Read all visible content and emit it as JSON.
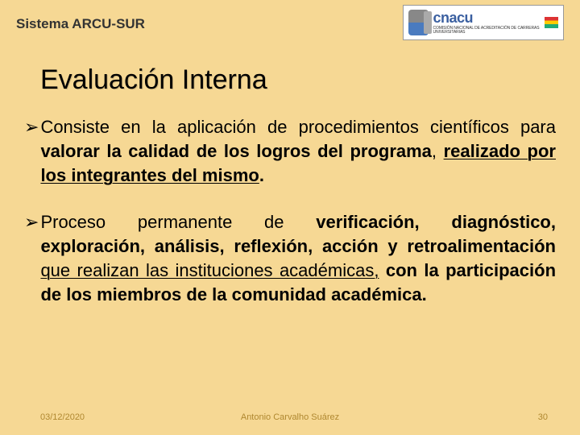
{
  "header": {
    "system_title": "Sistema ARCU-SUR",
    "logo_name": "cnacu",
    "logo_sub": "COMISIÓN NACIONAL DE ACREDITACIÓN DE CARRERAS UNIVERSITARIAS"
  },
  "title": "Evaluación Interna",
  "bullets": [
    {
      "t1": "Consiste en la aplicación de procedimientos científicos para ",
      "t2": "valorar la calidad de los logros del programa",
      "t3": ", ",
      "t4": "realizado por los integrantes del mismo",
      "t5": "."
    },
    {
      "t1": "Proceso permanente de ",
      "t2": "verificación, diagnóstico, exploración, análisis, reflexión, acción y retroalimentación",
      "t3": " ",
      "t4": "que realizan las instituciones académicas,",
      "t5": " con la participación de los miembros de la comunidad académica",
      "t6": "."
    }
  ],
  "footer": {
    "date": "03/12/2020",
    "author": "Antonio Carvalho Suárez",
    "page": "30"
  },
  "colors": {
    "background": "#f6d894",
    "footer_text": "#b08830"
  }
}
